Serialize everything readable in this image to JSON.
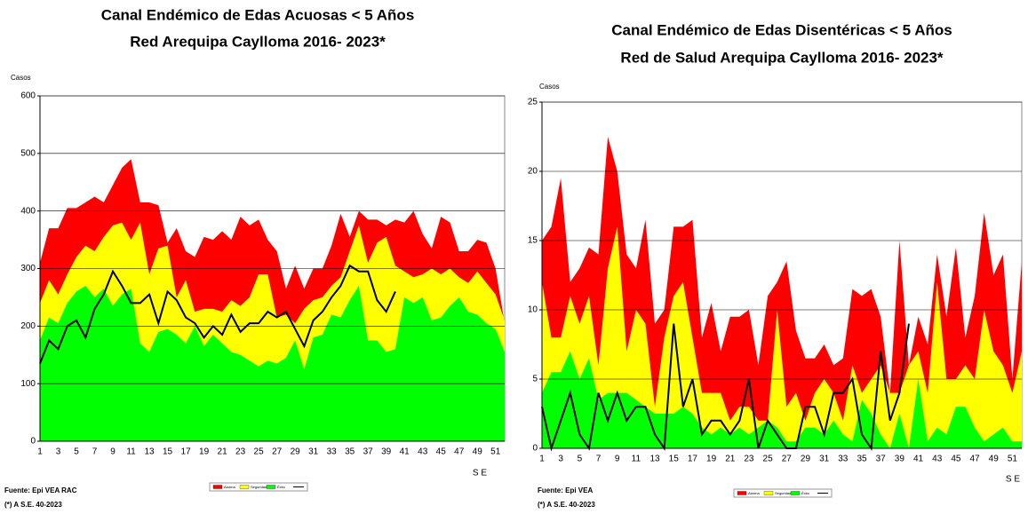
{
  "chart_data": [
    {
      "type": "area",
      "title": "Canal Endémico de Edas Acuosas  < 5 Años",
      "subtitle": "Red Arequipa Caylloma 2016- 2023*",
      "y_label": "Casos",
      "x_label": "S E",
      "notes": [
        "Fuente: Epi VEA RAC",
        "(*) A S.E. 40-2023"
      ],
      "categories": [
        1,
        null,
        3,
        null,
        5,
        null,
        7,
        null,
        9,
        null,
        11,
        null,
        13,
        null,
        15,
        null,
        17,
        null,
        19,
        null,
        21,
        null,
        23,
        null,
        25,
        null,
        27,
        null,
        29,
        null,
        31,
        null,
        33,
        null,
        35,
        null,
        37,
        null,
        39,
        null,
        41,
        null,
        43,
        null,
        45,
        null,
        47,
        null,
        49,
        null,
        51,
        null
      ],
      "ylim": [
        0,
        600
      ],
      "yticks": [
        0,
        100,
        200,
        300,
        400,
        500,
        600
      ],
      "grid": true,
      "series": [
        {
          "name": "Alarma",
          "color": "#ff0000",
          "values": [
            310,
            370,
            370,
            405,
            405,
            415,
            425,
            415,
            445,
            475,
            490,
            415,
            415,
            410,
            345,
            370,
            330,
            320,
            355,
            350,
            365,
            350,
            390,
            375,
            385,
            350,
            330,
            265,
            305,
            265,
            300,
            300,
            340,
            395,
            355,
            400,
            385,
            385,
            375,
            385,
            380,
            400,
            360,
            335,
            390,
            380,
            330,
            330,
            350,
            345,
            300,
            205
          ]
        },
        {
          "name": "Seguridad",
          "color": "#ffff00",
          "values": [
            240,
            280,
            255,
            290,
            320,
            340,
            330,
            355,
            375,
            380,
            350,
            380,
            290,
            335,
            340,
            250,
            280,
            225,
            230,
            230,
            225,
            245,
            235,
            250,
            290,
            290,
            215,
            220,
            205,
            230,
            245,
            250,
            270,
            285,
            330,
            375,
            310,
            345,
            355,
            305,
            295,
            285,
            290,
            300,
            290,
            300,
            285,
            275,
            295,
            275,
            255,
            210
          ]
        },
        {
          "name": "Éxito",
          "color": "#00ff00",
          "values": [
            175,
            215,
            205,
            240,
            260,
            270,
            250,
            265,
            235,
            255,
            265,
            170,
            155,
            190,
            195,
            185,
            170,
            200,
            165,
            185,
            170,
            155,
            150,
            140,
            130,
            140,
            135,
            145,
            175,
            125,
            180,
            185,
            220,
            215,
            245,
            270,
            175,
            175,
            155,
            160,
            250,
            240,
            250,
            210,
            215,
            235,
            250,
            225,
            220,
            205,
            195,
            155
          ]
        },
        {
          "type": "line",
          "color": "#000000",
          "values": [
            135,
            175,
            160,
            200,
            210,
            180,
            230,
            255,
            295,
            270,
            240,
            240,
            255,
            205,
            260,
            245,
            215,
            205,
            180,
            200,
            185,
            220,
            190,
            205,
            205,
            225,
            215,
            225,
            195,
            165,
            210,
            225,
            250,
            270,
            305,
            295,
            295,
            245,
            225,
            260,
            null,
            null,
            null,
            null,
            null,
            null,
            null,
            null,
            null,
            null,
            null,
            null
          ]
        }
      ]
    },
    {
      "type": "area",
      "title": "Canal Endémico de Edas Disentéricas  < 5 Años",
      "subtitle": "Red  de Salud Arequipa Caylloma 2016- 2023*",
      "y_label": "Casos",
      "x_label": "S E",
      "notes": [
        "Fuente: Epi VEA",
        "(*) A S.E. 40-2023"
      ],
      "categories": [
        1,
        null,
        3,
        null,
        5,
        null,
        7,
        null,
        9,
        null,
        11,
        null,
        13,
        null,
        15,
        null,
        17,
        null,
        19,
        null,
        21,
        null,
        23,
        null,
        25,
        null,
        27,
        null,
        29,
        null,
        31,
        null,
        33,
        null,
        35,
        null,
        37,
        null,
        39,
        null,
        41,
        null,
        43,
        null,
        45,
        null,
        47,
        null,
        49,
        null,
        51,
        null
      ],
      "ylim": [
        0,
        25
      ],
      "yticks": [
        0,
        5,
        10,
        15,
        20,
        25
      ],
      "grid": true,
      "series": [
        {
          "name": "Alarma",
          "color": "#ff0000",
          "values": [
            15,
            16,
            19.5,
            12,
            13,
            14.5,
            14,
            22.5,
            20,
            14,
            13,
            16.5,
            9,
            10,
            16,
            16,
            16.5,
            8,
            10.5,
            7,
            9.5,
            9.5,
            10,
            6,
            11,
            12,
            13.5,
            8.5,
            6.5,
            6.5,
            7.5,
            6,
            6.5,
            11.5,
            11,
            11.5,
            9.5,
            4,
            15,
            6,
            9.5,
            7.5,
            14,
            9.5,
            14.5,
            8,
            11,
            17,
            12.5,
            14,
            5,
            13.5
          ]
        },
        {
          "name": "Seguridad",
          "color": "#ffff00",
          "values": [
            12,
            8,
            8,
            11,
            9,
            11,
            6,
            13,
            16,
            7,
            10,
            9,
            3,
            8,
            11,
            12,
            8,
            4,
            4,
            4,
            2,
            3,
            3,
            2,
            2,
            10,
            3,
            4,
            2,
            4,
            5,
            4,
            2,
            6,
            4,
            5,
            6,
            4,
            4,
            6,
            7,
            4,
            12,
            5,
            5,
            6,
            5,
            10,
            7,
            6,
            4,
            7
          ]
        },
        {
          "name": "Éxito",
          "color": "#00ff00",
          "values": [
            4,
            5.5,
            5.5,
            7,
            5,
            6.5,
            3.5,
            4,
            4,
            4,
            3.5,
            3,
            2.5,
            2.5,
            2.5,
            3,
            2.5,
            1.5,
            1,
            1.5,
            1,
            1.5,
            1,
            1.5,
            2,
            1.5,
            0.5,
            0.5,
            1.5,
            1.5,
            1,
            2,
            1,
            0.5,
            3.5,
            2.5,
            1,
            0,
            2.5,
            0,
            5,
            0.5,
            1.5,
            1,
            3,
            3,
            1.5,
            0.5,
            1,
            1.5,
            0.5,
            0.5
          ]
        },
        {
          "type": "line",
          "color": "#000000",
          "values": [
            3,
            0,
            2,
            4,
            1,
            0,
            4,
            2,
            4,
            2,
            3,
            3,
            1,
            0,
            9,
            3,
            5,
            1,
            2,
            2,
            1,
            2,
            5,
            0,
            2,
            1,
            0,
            0,
            3,
            3,
            1,
            4,
            4,
            5,
            1,
            0,
            7,
            2,
            4,
            9,
            null,
            null,
            null,
            null,
            null,
            null,
            null,
            null,
            null,
            null,
            null,
            null
          ]
        }
      ]
    }
  ]
}
